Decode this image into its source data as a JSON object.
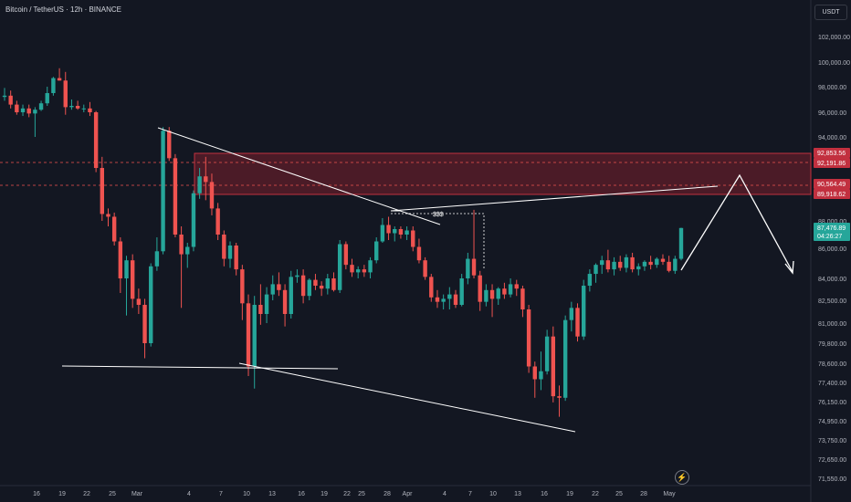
{
  "header": {
    "title": "Bitcoin / TetherUS · 12h · BINANCE"
  },
  "currency_label": "USDT",
  "refresh_icon": "lightning-icon",
  "colors": {
    "background": "#131722",
    "up": "#26a69a",
    "down": "#ef5350",
    "zone": "#7a1f2b",
    "zone_border": "#c2303f",
    "drawing": "#ffffff",
    "axis_text": "#b2b5be"
  },
  "chart_data": {
    "type": "candlestick",
    "title": "Bitcoin / TetherUS · 12h · BINANCE",
    "ylim": [
      70800,
      104000
    ],
    "y_ticks": [
      "102,000.00",
      "100,000.00",
      "98,000.00",
      "96,000.00",
      "94,000.00",
      "88,000.00",
      "86,000.00",
      "84,000.00",
      "82,500.00",
      "81,000.00",
      "79,800.00",
      "78,600.00",
      "77,400.00",
      "76,150.00",
      "74,950.00",
      "73,750.00",
      "72,650.00",
      "71,550.00"
    ],
    "x_ticks": [
      "16",
      "19",
      "22",
      "25",
      "Mar",
      "4",
      "7",
      "10",
      "13",
      "16",
      "19",
      "22",
      "25",
      "28",
      "Apr",
      "4",
      "7",
      "10",
      "13",
      "16",
      "19",
      "22",
      "25",
      "28",
      "May"
    ],
    "price_labels": [
      {
        "text": "92,853.56",
        "type": "zone"
      },
      {
        "text": "92,191.86",
        "type": "zone"
      },
      {
        "text": "90,564.49",
        "type": "zone"
      },
      {
        "text": "89,918.62",
        "type": "zone"
      },
      {
        "text": "87,476.89",
        "type": "last"
      },
      {
        "text": "04:26:27",
        "type": "countdown"
      }
    ],
    "annotations": [
      "$$$"
    ],
    "candles": [
      [
        97.2,
        97.9,
        96.9,
        97.3
      ],
      [
        97.3,
        97.7,
        96.3,
        96.6
      ],
      [
        96.6,
        96.9,
        95.8,
        96.0
      ],
      [
        96.0,
        96.6,
        95.7,
        96.3
      ],
      [
        96.3,
        96.6,
        95.6,
        95.9
      ],
      [
        95.9,
        96.4,
        94.0,
        96.2
      ],
      [
        96.2,
        96.9,
        96.1,
        96.7
      ],
      [
        96.7,
        98.0,
        96.5,
        97.5
      ],
      [
        97.5,
        98.8,
        97.3,
        98.7
      ],
      [
        98.7,
        99.5,
        98.5,
        98.5
      ],
      [
        98.5,
        99.2,
        95.8,
        96.4
      ],
      [
        96.4,
        97.0,
        96.2,
        96.5
      ],
      [
        96.5,
        96.9,
        96.2,
        96.3
      ],
      [
        96.3,
        96.6,
        96.0,
        96.3
      ],
      [
        96.3,
        96.8,
        95.7,
        96.0
      ],
      [
        96.0,
        96.1,
        91.5,
        91.8
      ],
      [
        91.8,
        92.6,
        88.0,
        88.5
      ],
      [
        88.5,
        88.9,
        87.6,
        88.3
      ],
      [
        88.3,
        88.6,
        86.2,
        86.5
      ],
      [
        86.5,
        86.8,
        83.0,
        84.0
      ],
      [
        84.0,
        85.5,
        81.5,
        85.2
      ],
      [
        85.2,
        85.6,
        82.0,
        82.6
      ],
      [
        82.6,
        83.3,
        81.6,
        82.2
      ],
      [
        82.2,
        82.6,
        78.9,
        79.8
      ],
      [
        79.8,
        85.0,
        79.6,
        84.8
      ],
      [
        84.8,
        86.8,
        84.5,
        85.8
      ],
      [
        85.8,
        94.8,
        85.6,
        94.5
      ],
      [
        94.5,
        94.8,
        92.3,
        92.5
      ],
      [
        92.5,
        92.8,
        86.8,
        87.0
      ],
      [
        87.0,
        87.6,
        82.0,
        85.6
      ],
      [
        85.6,
        86.4,
        84.7,
        86.1
      ],
      [
        86.1,
        90.2,
        85.8,
        90.0
      ],
      [
        90.0,
        91.8,
        89.6,
        91.2
      ],
      [
        91.2,
        92.6,
        89.5,
        90.8
      ],
      [
        90.8,
        91.4,
        88.4,
        88.9
      ],
      [
        88.9,
        89.3,
        86.6,
        87.0
      ],
      [
        87.0,
        87.3,
        84.8,
        85.3
      ],
      [
        85.3,
        86.5,
        84.7,
        86.2
      ],
      [
        86.2,
        86.4,
        84.2,
        84.6
      ],
      [
        84.6,
        84.9,
        81.2,
        82.3
      ],
      [
        82.3,
        82.9,
        77.8,
        78.4
      ],
      [
        78.4,
        82.8,
        77.0,
        82.2
      ],
      [
        82.2,
        83.6,
        80.9,
        81.6
      ],
      [
        81.6,
        83.4,
        81.0,
        82.9
      ],
      [
        82.9,
        84.2,
        82.5,
        83.6
      ],
      [
        83.6,
        84.4,
        82.8,
        83.2
      ],
      [
        83.2,
        83.6,
        80.8,
        81.6
      ],
      [
        81.6,
        84.5,
        81.3,
        84.1
      ],
      [
        84.1,
        84.6,
        83.7,
        84.2
      ],
      [
        84.2,
        84.6,
        82.3,
        82.8
      ],
      [
        82.8,
        84.0,
        82.5,
        83.9
      ],
      [
        83.9,
        84.3,
        83.2,
        83.5
      ],
      [
        83.5,
        83.8,
        82.8,
        83.3
      ],
      [
        83.3,
        84.3,
        82.9,
        84.0
      ],
      [
        84.0,
        84.4,
        83.1,
        83.2
      ],
      [
        83.2,
        86.6,
        83.0,
        86.3
      ],
      [
        86.3,
        86.5,
        84.6,
        84.9
      ],
      [
        84.9,
        85.3,
        84.1,
        84.4
      ],
      [
        84.4,
        84.8,
        84.0,
        84.6
      ],
      [
        84.6,
        84.9,
        84.1,
        84.4
      ],
      [
        84.4,
        85.4,
        84.0,
        85.2
      ],
      [
        85.2,
        86.8,
        85.0,
        86.5
      ],
      [
        86.5,
        88.2,
        86.4,
        87.7
      ],
      [
        87.7,
        88.3,
        86.6,
        87.1
      ],
      [
        87.1,
        87.6,
        86.5,
        87.4
      ],
      [
        87.4,
        87.6,
        86.7,
        87.0
      ],
      [
        87.0,
        87.6,
        86.6,
        87.3
      ],
      [
        87.3,
        87.6,
        85.8,
        86.1
      ],
      [
        86.1,
        86.7,
        85.0,
        85.2
      ],
      [
        85.2,
        85.4,
        83.9,
        84.1
      ],
      [
        84.1,
        84.3,
        82.4,
        82.7
      ],
      [
        82.7,
        83.2,
        82.0,
        82.4
      ],
      [
        82.4,
        82.9,
        81.9,
        82.6
      ],
      [
        82.6,
        83.4,
        81.9,
        82.9
      ],
      [
        82.9,
        83.2,
        82.0,
        82.2
      ],
      [
        82.2,
        84.3,
        82.1,
        84.0
      ],
      [
        84.0,
        85.7,
        83.6,
        85.3
      ],
      [
        85.3,
        88.8,
        84.0,
        84.2
      ],
      [
        84.2,
        84.5,
        81.8,
        82.4
      ],
      [
        82.4,
        83.6,
        82.1,
        83.2
      ],
      [
        83.2,
        83.6,
        81.4,
        82.6
      ],
      [
        82.6,
        83.4,
        82.2,
        83.3
      ],
      [
        83.3,
        83.7,
        82.6,
        82.9
      ],
      [
        82.9,
        84.0,
        82.7,
        83.6
      ],
      [
        83.6,
        83.9,
        82.8,
        83.3
      ],
      [
        83.3,
        83.5,
        81.4,
        81.9
      ],
      [
        81.9,
        82.2,
        78.0,
        78.4
      ],
      [
        78.4,
        78.7,
        76.4,
        77.6
      ],
      [
        77.6,
        79.3,
        76.9,
        78.1
      ],
      [
        78.1,
        80.6,
        77.9,
        80.2
      ],
      [
        80.2,
        80.8,
        76.1,
        76.5
      ],
      [
        76.5,
        77.2,
        75.2,
        76.4
      ],
      [
        76.4,
        81.5,
        76.2,
        81.2
      ],
      [
        81.2,
        82.4,
        80.5,
        82.0
      ],
      [
        82.0,
        82.3,
        79.9,
        80.2
      ],
      [
        80.2,
        83.9,
        80.0,
        83.5
      ],
      [
        83.5,
        84.6,
        83.1,
        84.3
      ],
      [
        84.3,
        85.0,
        83.7,
        84.9
      ],
      [
        84.9,
        85.5,
        84.3,
        85.2
      ],
      [
        85.2,
        85.9,
        84.4,
        84.6
      ],
      [
        84.6,
        85.4,
        84.2,
        85.1
      ],
      [
        85.1,
        85.5,
        84.5,
        84.7
      ],
      [
        84.7,
        85.6,
        84.4,
        85.4
      ],
      [
        85.4,
        85.7,
        84.4,
        84.6
      ],
      [
        84.6,
        85.0,
        84.2,
        84.8
      ],
      [
        84.8,
        85.2,
        84.5,
        85.1
      ],
      [
        85.1,
        85.5,
        84.6,
        84.9
      ],
      [
        84.9,
        85.4,
        84.7,
        85.3
      ],
      [
        85.3,
        85.6,
        84.9,
        85.1
      ],
      [
        85.1,
        85.5,
        84.4,
        84.5
      ],
      [
        84.5,
        85.5,
        84.3,
        85.3
      ],
      [
        85.3,
        87.5,
        85.2,
        87.48
      ]
    ]
  }
}
